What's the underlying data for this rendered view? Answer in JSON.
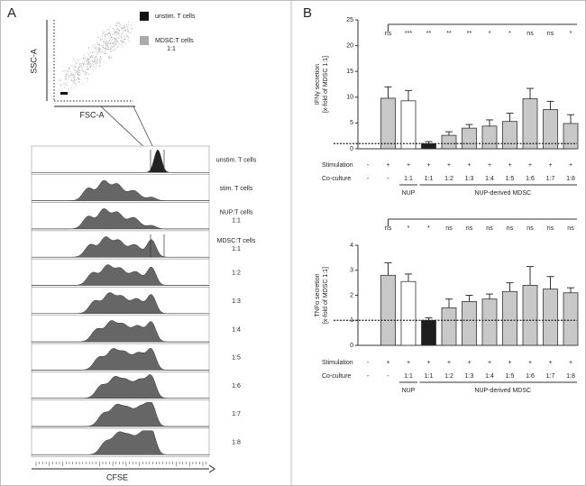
{
  "panel_a": {
    "letter": "A",
    "scatter_y_label": "SSC-A",
    "scatter_x_label": "FSC-A",
    "legend": [
      "unstim. T cells",
      "MDSC:T cells",
      "1:1"
    ],
    "rows": [
      [
        "unstim. T cells"
      ],
      [
        "stim. T cells"
      ],
      [
        "NUP:T cells",
        "1:1"
      ],
      [
        "MDSC:T cells",
        "1:1"
      ],
      [
        "1:2"
      ],
      [
        "1:3"
      ],
      [
        "1:4"
      ],
      [
        "1:5"
      ],
      [
        "1:6"
      ],
      [
        "1:7"
      ],
      [
        "1:8"
      ]
    ],
    "x_label": "CFSE"
  },
  "panel_b": {
    "letter": "B"
  },
  "chart_data": [
    {
      "type": "bar",
      "y_label": [
        "IFNγ secretion",
        "[x-fold of MDSC 1:1]"
      ],
      "ylim": [
        0,
        25
      ],
      "yticks": [
        0,
        5,
        10,
        15,
        20,
        25
      ],
      "reference_line": 1,
      "values": [
        null,
        9.8,
        9.3,
        1.0,
        2.6,
        4.0,
        4.4,
        5.3,
        9.7,
        7.6,
        4.9
      ],
      "errors": [
        null,
        2.2,
        2.0,
        0.4,
        0.7,
        0.7,
        1.2,
        1.6,
        2.0,
        1.6,
        1.7
      ],
      "colors": [
        null,
        "#c8c8c8",
        "#ffffff",
        "#1e1e1e",
        "#c8c8c8",
        "#c8c8c8",
        "#c8c8c8",
        "#c8c8c8",
        "#c8c8c8",
        "#c8c8c8",
        "#c8c8c8"
      ],
      "significance": [
        null,
        "ns",
        "***",
        "**",
        "**",
        "**",
        "*",
        "*",
        "ns",
        "ns",
        "*"
      ],
      "stimulation_label": "Stimulation",
      "stimulation": [
        "-",
        "+",
        "+",
        "+",
        "+",
        "+",
        "+",
        "+",
        "+",
        "+",
        "+"
      ],
      "co_culture_label": "Co-culture",
      "co_culture": [
        "-",
        "-",
        "1:1",
        "1:1",
        "1:2",
        "1:3",
        "1:4",
        "1:5",
        "1:6",
        "1:7",
        "1:8"
      ],
      "groups": [
        "NUP",
        "NUP-derived MDSC"
      ]
    },
    {
      "type": "bar",
      "y_label": [
        "TNFα secretion",
        "[x-fold of MDSC 1:1]"
      ],
      "ylim": [
        0,
        4
      ],
      "yticks": [
        0,
        1,
        2,
        3,
        4
      ],
      "reference_line": 1,
      "values": [
        null,
        2.8,
        2.55,
        1.0,
        1.5,
        1.75,
        1.85,
        2.15,
        2.4,
        2.25,
        2.1
      ],
      "errors": [
        null,
        0.5,
        0.3,
        0.1,
        0.35,
        0.25,
        0.2,
        0.35,
        0.75,
        0.5,
        0.2
      ],
      "colors": [
        null,
        "#c8c8c8",
        "#ffffff",
        "#1e1e1e",
        "#c8c8c8",
        "#c8c8c8",
        "#c8c8c8",
        "#c8c8c8",
        "#c8c8c8",
        "#c8c8c8",
        "#c8c8c8"
      ],
      "significance": [
        null,
        "ns",
        "*",
        "*",
        "ns",
        "ns",
        "ns",
        "ns",
        "ns",
        "ns",
        "ns"
      ],
      "stimulation_label": "Stimulation",
      "stimulation": [
        "-",
        "+",
        "+",
        "+",
        "+",
        "+",
        "+",
        "+",
        "+",
        "+",
        "+"
      ],
      "co_culture_label": "Co-culture",
      "co_culture": [
        "-",
        "-",
        "1:1",
        "1:1",
        "1:2",
        "1:3",
        "1:4",
        "1:5",
        "1:6",
        "1:7",
        "1:8"
      ],
      "groups": [
        "NUP",
        "NUP-derived MDSC"
      ]
    }
  ]
}
